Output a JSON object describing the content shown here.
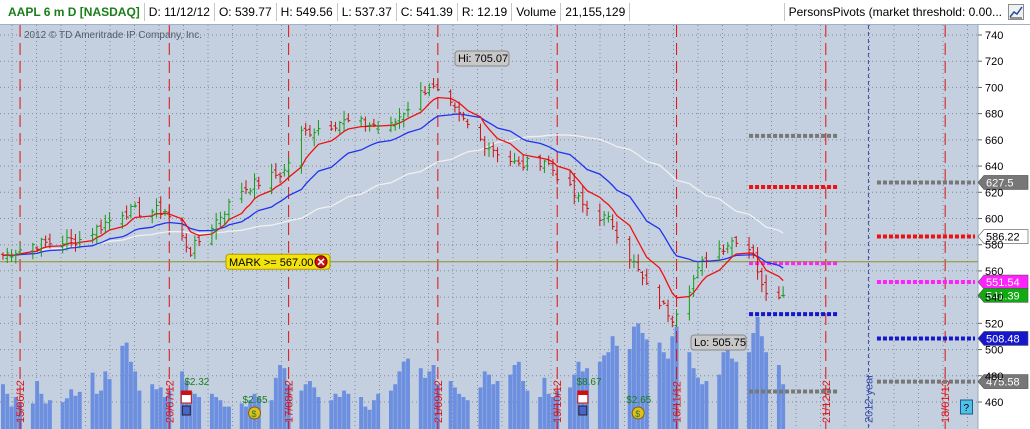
{
  "header": {
    "symbol": "AAPL 6 m D [NASDAQ]",
    "date": "D: 11/12/12",
    "open": "O: 539.77",
    "high": "H: 549.56",
    "low": "L: 537.37",
    "close": "C: 541.39",
    "range": "R: 12.19",
    "volume_label": "Volume",
    "volume": "21,155,129",
    "study": "PersonsPivots (market threshold: 0.00..."
  },
  "watermark": "2012 © TD Ameritrade IP Company, Inc.",
  "mark": {
    "label": "MARK >= 567.00",
    "price": 567
  },
  "hi_label": "Hi: 705.07",
  "lo_label": "Lo: 505.75",
  "price_badges": [
    {
      "text": "627.5",
      "value": 627.5,
      "color": "#777777"
    },
    {
      "text": "586.22",
      "value": 586.22,
      "color": "#ffffff",
      "text_color": "#000000"
    },
    {
      "text": "551.54",
      "value": 551.54,
      "color": "#ff22ff"
    },
    {
      "text": "541.39",
      "value": 541.39,
      "color": "#11aa11"
    },
    {
      "text": "508.48",
      "value": 508.48,
      "color": "#1616cc"
    },
    {
      "text": "475.58",
      "value": 475.58,
      "color": "#777777"
    }
  ],
  "chart_data": {
    "type": "candlestick",
    "ylim": [
      450,
      750
    ],
    "y_ticks": [
      460,
      480,
      500,
      520,
      540,
      560,
      580,
      600,
      620,
      640,
      660,
      680,
      700,
      720,
      740
    ],
    "x_start": "2012-06-11",
    "x_end": "2013-01-25",
    "month_markers": [
      {
        "label": "15/06/12",
        "date": "2012-06-15"
      },
      {
        "label": "20/07/12",
        "date": "2012-07-20"
      },
      {
        "label": "17/08/12",
        "date": "2012-08-17"
      },
      {
        "label": "21/09/12",
        "date": "2012-09-21"
      },
      {
        "label": "19/10/12",
        "date": "2012-10-19"
      },
      {
        "label": "16/11/12",
        "date": "2012-11-16"
      },
      {
        "label": "21/12/12",
        "date": "2012-12-21"
      },
      {
        "label": "2012 year",
        "date": "2012-12-31"
      },
      {
        "label": "18/01/13",
        "date": "2013-01-18"
      }
    ],
    "price_anchors": [
      {
        "date": "2012-06-11",
        "close": 572
      },
      {
        "date": "2012-06-18",
        "close": 580
      },
      {
        "date": "2012-06-29",
        "close": 584
      },
      {
        "date": "2012-07-09",
        "close": 605
      },
      {
        "date": "2012-07-19",
        "close": 606
      },
      {
        "date": "2012-07-25",
        "close": 575
      },
      {
        "date": "2012-08-06",
        "close": 622
      },
      {
        "date": "2012-08-16",
        "close": 636
      },
      {
        "date": "2012-08-20",
        "close": 665
      },
      {
        "date": "2012-08-29",
        "close": 674
      },
      {
        "date": "2012-09-10",
        "close": 670
      },
      {
        "date": "2012-09-13",
        "close": 682
      },
      {
        "date": "2012-09-19",
        "close": 702
      },
      {
        "date": "2012-10-01",
        "close": 660
      },
      {
        "date": "2012-10-10",
        "close": 640
      },
      {
        "date": "2012-10-16",
        "close": 645
      },
      {
        "date": "2012-10-25",
        "close": 610
      },
      {
        "date": "2012-11-01",
        "close": 596
      },
      {
        "date": "2012-11-09",
        "close": 547
      },
      {
        "date": "2012-11-15",
        "close": 525
      },
      {
        "date": "2012-11-23",
        "close": 571
      },
      {
        "date": "2012-11-30",
        "close": 585
      },
      {
        "date": "2012-12-04",
        "close": 575
      },
      {
        "date": "2012-12-06",
        "close": 547
      },
      {
        "date": "2012-12-11",
        "close": 541.39
      }
    ],
    "volume_profile": [
      0.7,
      0.55,
      0.35,
      0.5,
      0.42,
      0.4,
      0.75,
      0.55,
      0.4,
      0.45,
      0.42,
      0.48,
      0.62,
      0.52,
      0.58,
      0.88,
      0.55,
      0.6,
      0.9,
      0.78,
      1.3,
      1.35,
      1.05,
      0.9,
      0.6,
      0.7,
      0.62,
      0.65,
      0.5,
      0.6,
      0.9,
      0.75,
      0.58,
      0.55,
      0.5,
      0.55,
      0.5,
      0.45,
      0.35,
      0.35,
      0.4,
      0.35,
      0.45,
      0.55,
      0.5,
      0.45,
      0.8,
      1.0,
      0.95,
      0.7,
      0.6,
      0.7,
      0.75,
      0.65,
      0.5,
      0.45,
      0.55,
      0.5,
      0.6,
      0.55,
      0.5,
      0.35,
      0.3,
      0.45,
      0.55,
      0.6,
      0.7,
      0.9,
      1.05,
      1.1,
      0.95,
      0.8,
      0.9,
      1.0,
      0.7,
      0.75,
      0.65,
      0.55,
      0.5,
      0.45,
      0.65,
      0.9,
      0.85,
      0.7,
      0.75,
      0.85,
      1.0,
      1.05,
      0.75,
      0.6,
      0.5,
      0.8,
      0.55,
      0.5,
      0.6,
      0.65,
      0.85,
      1.05,
      0.9,
      0.95,
      1.05,
      1.15,
      1.2,
      1.45,
      1.3,
      1.25,
      1.6,
      1.65,
      1.5,
      1.4,
      1.35,
      1.2,
      1.1,
      1.45,
      1.6,
      1.2,
      0.95,
      0.8,
      0.7,
      0.75,
      0.85,
      1.2,
      1.25,
      1.1,
      1.05,
      1.2,
      1.5,
      1.75,
      1.45,
      1.2,
      1.0
    ],
    "pivot_segments": [
      {
        "from": "2012-12-03",
        "to": "2012-12-24",
        "price": 663,
        "color": "#777777"
      },
      {
        "from": "2012-12-03",
        "to": "2012-12-24",
        "price": 624,
        "color": "#ee1111"
      },
      {
        "from": "2012-12-03",
        "to": "2012-12-24",
        "price": 566,
        "color": "#ff22ff"
      },
      {
        "from": "2012-12-03",
        "to": "2012-12-24",
        "price": 527,
        "color": "#1616cc"
      },
      {
        "from": "2012-12-03",
        "to": "2012-12-24",
        "price": 468,
        "color": "#777777"
      },
      {
        "from": "2013-01-02",
        "to": "2013-01-25",
        "price": 627.5,
        "color": "#777777"
      },
      {
        "from": "2013-01-02",
        "to": "2013-01-25",
        "price": 586.22,
        "color": "#ee1111"
      },
      {
        "from": "2013-01-02",
        "to": "2013-01-25",
        "price": 551.54,
        "color": "#ff22ff"
      },
      {
        "from": "2013-01-02",
        "to": "2013-01-25",
        "price": 508.48,
        "color": "#1616cc"
      },
      {
        "from": "2013-01-02",
        "to": "2013-01-25",
        "price": 475.58,
        "color": "#777777"
      }
    ],
    "events": [
      {
        "date": "2012-07-24",
        "type": "earnings",
        "text": ""
      },
      {
        "date": "2012-07-24",
        "type": "dividend-label",
        "text": "$2.32"
      },
      {
        "date": "2012-08-09",
        "type": "dividend",
        "text": "$2.65"
      },
      {
        "date": "2012-10-25",
        "type": "earnings",
        "text": ""
      },
      {
        "date": "2012-10-24",
        "type": "dividend-label",
        "text": "$8.67"
      },
      {
        "date": "2012-11-07",
        "type": "dividend",
        "text": "$2.65"
      },
      {
        "date": "2013-01-23",
        "type": "help",
        "text": "?"
      }
    ],
    "series": [
      {
        "name": "",
        "color": "#ee1111"
      },
      {
        "name": "",
        "color": "#2233ee"
      },
      {
        "name": "",
        "color": "#f0f0f0"
      }
    ]
  }
}
